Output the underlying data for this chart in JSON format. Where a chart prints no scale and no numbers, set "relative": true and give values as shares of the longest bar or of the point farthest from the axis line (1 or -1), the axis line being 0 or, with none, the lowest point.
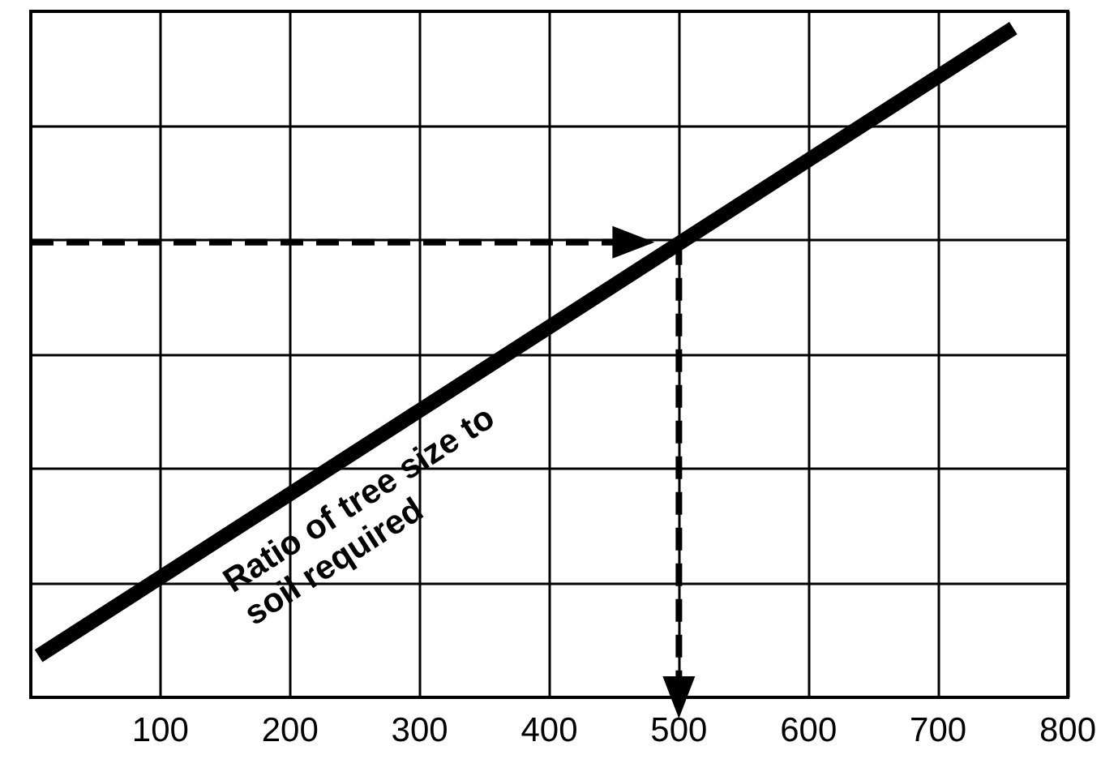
{
  "chart_data": {
    "type": "line",
    "relative": true,
    "xlim": [
      0,
      800
    ],
    "xticks": [
      100,
      200,
      300,
      400,
      500,
      600,
      700,
      800
    ],
    "grid": true,
    "legend": false,
    "tick_labels": "x",
    "series": [
      {
        "name": "Ratio of tree size to soil required",
        "color": "#000000",
        "x": [
          6,
          758
        ],
        "values": [
          0.062,
          1
        ],
        "marker": "none",
        "line_style": "solid"
      },
      {
        "color": "#000000",
        "x": [
          0,
          465
        ],
        "values": [
          0.68,
          0.68
        ],
        "marker": "triangle",
        "line_style": "dashed"
      },
      {
        "color": "#000000",
        "x": [
          500,
          500
        ],
        "values": [
          0.68,
          0
        ],
        "marker": "triangle",
        "line_style": "dashed"
      }
    ]
  }
}
